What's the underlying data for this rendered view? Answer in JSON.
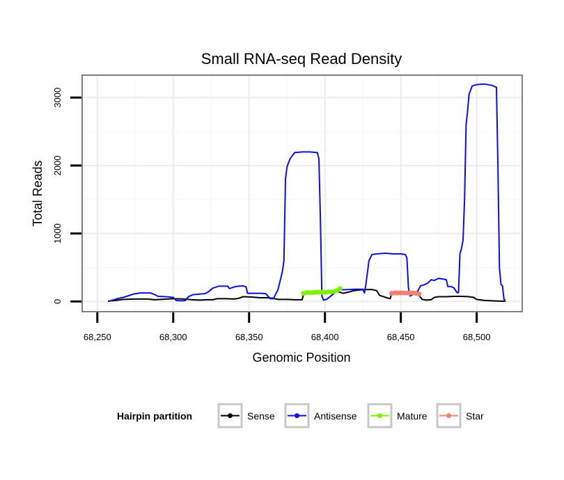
{
  "chart_data": {
    "type": "line",
    "title": "Small RNA-seq Read Density",
    "xlabel": "Genomic Position",
    "ylabel": "Total Reads",
    "xlim": [
      68240,
      68530
    ],
    "ylim": [
      -150,
      3330
    ],
    "x_ticks": [
      {
        "value": 68250,
        "label": "68,250"
      },
      {
        "value": 68300,
        "label": "68,300"
      },
      {
        "value": 68350,
        "label": "68,350"
      },
      {
        "value": 68400,
        "label": "68,400"
      },
      {
        "value": 68450,
        "label": "68,450"
      },
      {
        "value": 68500,
        "label": "68,500"
      }
    ],
    "y_ticks": [
      {
        "value": 0,
        "label": "0"
      },
      {
        "value": 1000,
        "label": "1000"
      },
      {
        "value": 2000,
        "label": "2000"
      },
      {
        "value": 3000,
        "label": "3000"
      }
    ],
    "grid": true,
    "legend": {
      "title": "Hairpin partition",
      "position": "bottom",
      "entries": [
        "Sense",
        "Antisense",
        "Mature",
        "Star"
      ]
    },
    "series": [
      {
        "name": "Sense",
        "color": "#000000",
        "marker": false,
        "points": [
          [
            68257,
            5
          ],
          [
            68262,
            15
          ],
          [
            68267,
            30
          ],
          [
            68275,
            35
          ],
          [
            68283,
            35
          ],
          [
            68288,
            25
          ],
          [
            68292,
            30
          ],
          [
            68300,
            40
          ],
          [
            68308,
            35
          ],
          [
            68312,
            25
          ],
          [
            68318,
            20
          ],
          [
            68322,
            25
          ],
          [
            68326,
            25
          ],
          [
            68329,
            40
          ],
          [
            68335,
            40
          ],
          [
            68340,
            35
          ],
          [
            68343,
            45
          ],
          [
            68346,
            70
          ],
          [
            68352,
            65
          ],
          [
            68357,
            55
          ],
          [
            68362,
            55
          ],
          [
            68366,
            45
          ],
          [
            68369,
            30
          ],
          [
            68375,
            30
          ],
          [
            68380,
            25
          ],
          [
            68385,
            25
          ],
          [
            68386,
            120
          ],
          [
            68389,
            130
          ],
          [
            68395,
            130
          ],
          [
            68400,
            130
          ],
          [
            68405,
            135
          ],
          [
            68409,
            140
          ],
          [
            68412,
            120
          ],
          [
            68416,
            140
          ],
          [
            68419,
            160
          ],
          [
            68423,
            170
          ],
          [
            68427,
            175
          ],
          [
            68431,
            175
          ],
          [
            68434,
            160
          ],
          [
            68436,
            90
          ],
          [
            68440,
            60
          ],
          [
            68443,
            40
          ],
          [
            68444,
            120
          ],
          [
            68448,
            120
          ],
          [
            68455,
            130
          ],
          [
            68461,
            120
          ],
          [
            68464,
            30
          ],
          [
            68467,
            20
          ],
          [
            68470,
            25
          ],
          [
            68472,
            60
          ],
          [
            68475,
            70
          ],
          [
            68480,
            70
          ],
          [
            68485,
            75
          ],
          [
            68490,
            75
          ],
          [
            68495,
            70
          ],
          [
            68498,
            60
          ],
          [
            68500,
            30
          ],
          [
            68505,
            15
          ],
          [
            68510,
            10
          ],
          [
            68515,
            5
          ],
          [
            68519,
            5
          ]
        ]
      },
      {
        "name": "Antisense",
        "color": "#0a10e0",
        "marker": false,
        "points": [
          [
            68258,
            5
          ],
          [
            68263,
            40
          ],
          [
            68267,
            60
          ],
          [
            68270,
            80
          ],
          [
            68274,
            110
          ],
          [
            68278,
            125
          ],
          [
            68285,
            125
          ],
          [
            68288,
            100
          ],
          [
            68290,
            75
          ],
          [
            68295,
            70
          ],
          [
            68300,
            60
          ],
          [
            68302,
            15
          ],
          [
            68306,
            10
          ],
          [
            68308,
            15
          ],
          [
            68310,
            70
          ],
          [
            68313,
            100
          ],
          [
            68318,
            110
          ],
          [
            68321,
            115
          ],
          [
            68323,
            140
          ],
          [
            68326,
            195
          ],
          [
            68330,
            225
          ],
          [
            68336,
            225
          ],
          [
            68337,
            190
          ],
          [
            68341,
            220
          ],
          [
            68346,
            230
          ],
          [
            68348,
            215
          ],
          [
            68349,
            120
          ],
          [
            68352,
            120
          ],
          [
            68358,
            120
          ],
          [
            68361,
            115
          ],
          [
            68364,
            40
          ],
          [
            68366,
            40
          ],
          [
            68369,
            170
          ],
          [
            68371,
            350
          ],
          [
            68372,
            450
          ],
          [
            68373,
            600
          ],
          [
            68374,
            1800
          ],
          [
            68375,
            1980
          ],
          [
            68377,
            2100
          ],
          [
            68380,
            2190
          ],
          [
            68385,
            2200
          ],
          [
            68390,
            2200
          ],
          [
            68395,
            2190
          ],
          [
            68396,
            2100
          ],
          [
            68397,
            1200
          ],
          [
            68398,
            80
          ],
          [
            68399,
            20
          ],
          [
            68401,
            30
          ],
          [
            68405,
            100
          ],
          [
            68409,
            170
          ],
          [
            68415,
            175
          ],
          [
            68420,
            180
          ],
          [
            68425,
            180
          ],
          [
            68426,
            125
          ],
          [
            68427,
            250
          ],
          [
            68429,
            600
          ],
          [
            68431,
            690
          ],
          [
            68434,
            700
          ],
          [
            68437,
            705
          ],
          [
            68440,
            710
          ],
          [
            68445,
            700
          ],
          [
            68450,
            700
          ],
          [
            68453,
            690
          ],
          [
            68454,
            640
          ],
          [
            68455,
            200
          ],
          [
            68456,
            80
          ],
          [
            68459,
            110
          ],
          [
            68461,
            145
          ],
          [
            68463,
            230
          ],
          [
            68466,
            250
          ],
          [
            68468,
            275
          ],
          [
            68470,
            320
          ],
          [
            68472,
            310
          ],
          [
            68475,
            340
          ],
          [
            68479,
            325
          ],
          [
            68480,
            320
          ],
          [
            68481,
            220
          ],
          [
            68483,
            220
          ],
          [
            68485,
            200
          ],
          [
            68487,
            130
          ],
          [
            68488,
            130
          ],
          [
            68489,
            700
          ],
          [
            68490,
            780
          ],
          [
            68491,
            900
          ],
          [
            68492,
            1500
          ],
          [
            68493,
            2600
          ],
          [
            68494,
            2800
          ],
          [
            68495,
            3050
          ],
          [
            68497,
            3170
          ],
          [
            68500,
            3190
          ],
          [
            68505,
            3200
          ],
          [
            68510,
            3180
          ],
          [
            68513,
            3150
          ],
          [
            68514,
            2000
          ],
          [
            68515,
            500
          ],
          [
            68516,
            250
          ],
          [
            68517,
            230
          ],
          [
            68518,
            30
          ],
          [
            68519,
            20
          ]
        ]
      },
      {
        "name": "Mature",
        "color": "#80f000",
        "marker": true,
        "points": [
          [
            68386,
            120
          ],
          [
            68388,
            130
          ],
          [
            68390,
            130
          ],
          [
            68392,
            130
          ],
          [
            68394,
            135
          ],
          [
            68396,
            135
          ],
          [
            68398,
            135
          ],
          [
            68400,
            135
          ],
          [
            68402,
            140
          ],
          [
            68404,
            140
          ],
          [
            68406,
            145
          ],
          [
            68408,
            160
          ],
          [
            68410,
            190
          ]
        ]
      },
      {
        "name": "Star",
        "color": "#f08070",
        "marker": true,
        "points": [
          [
            68444,
            120
          ],
          [
            68446,
            125
          ],
          [
            68448,
            125
          ],
          [
            68450,
            125
          ],
          [
            68452,
            125
          ],
          [
            68454,
            125
          ],
          [
            68456,
            125
          ],
          [
            68458,
            125
          ],
          [
            68460,
            120
          ],
          [
            68462,
            110
          ]
        ]
      }
    ]
  }
}
